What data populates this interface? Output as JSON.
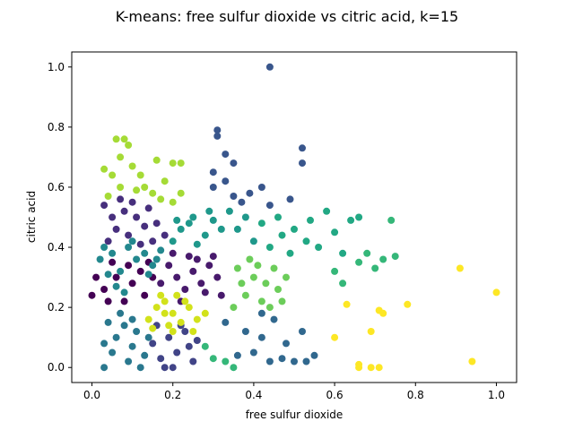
{
  "chart_data": {
    "type": "scatter",
    "title": "K-means: free sulfur dioxide vs citric acid, k=15",
    "xlabel": "free sulfur dioxide",
    "ylabel": "citric acid",
    "xlim": [
      -0.05,
      1.05
    ],
    "ylim": [
      -0.05,
      1.05
    ],
    "xticks": [
      0.0,
      0.2,
      0.4,
      0.6,
      0.8,
      1.0
    ],
    "xtick_labels": [
      "0.0",
      "0.2",
      "0.4",
      "0.6",
      "0.8",
      "1.0"
    ],
    "yticks": [
      0.0,
      0.2,
      0.4,
      0.6,
      0.8,
      1.0
    ],
    "ytick_labels": [
      "0.0",
      "0.2",
      "0.4",
      "0.6",
      "0.8",
      "1.0"
    ],
    "grid": false,
    "legend": false,
    "colormap": "viridis",
    "clusters": [
      {
        "color": "#440154",
        "points": [
          [
            0.0,
            0.24
          ],
          [
            0.01,
            0.3
          ],
          [
            0.03,
            0.26
          ],
          [
            0.06,
            0.3
          ],
          [
            0.08,
            0.22
          ],
          [
            0.1,
            0.28
          ],
          [
            0.12,
            0.32
          ],
          [
            0.13,
            0.24
          ],
          [
            0.15,
            0.3
          ],
          [
            0.04,
            0.22
          ],
          [
            0.09,
            0.34
          ],
          [
            0.14,
            0.35
          ],
          [
            0.05,
            0.35
          ]
        ]
      },
      {
        "color": "#481a6c",
        "points": [
          [
            0.17,
            0.28
          ],
          [
            0.19,
            0.34
          ],
          [
            0.21,
            0.3
          ],
          [
            0.23,
            0.26
          ],
          [
            0.25,
            0.32
          ],
          [
            0.27,
            0.28
          ],
          [
            0.29,
            0.34
          ],
          [
            0.31,
            0.3
          ],
          [
            0.32,
            0.24
          ],
          [
            0.2,
            0.38
          ],
          [
            0.24,
            0.37
          ],
          [
            0.28,
            0.25
          ],
          [
            0.22,
            0.22
          ],
          [
            0.3,
            0.37
          ],
          [
            0.26,
            0.36
          ]
        ]
      },
      {
        "color": "#472f7d",
        "points": [
          [
            0.03,
            0.54
          ],
          [
            0.05,
            0.5
          ],
          [
            0.06,
            0.46
          ],
          [
            0.08,
            0.52
          ],
          [
            0.09,
            0.44
          ],
          [
            0.11,
            0.5
          ],
          [
            0.13,
            0.47
          ],
          [
            0.15,
            0.42
          ],
          [
            0.16,
            0.48
          ],
          [
            0.18,
            0.44
          ],
          [
            0.04,
            0.42
          ],
          [
            0.07,
            0.56
          ],
          [
            0.1,
            0.55
          ],
          [
            0.12,
            0.41
          ],
          [
            0.14,
            0.53
          ]
        ]
      },
      {
        "color": "#414487",
        "points": [
          [
            0.15,
            0.08
          ],
          [
            0.17,
            0.03
          ],
          [
            0.19,
            0.1
          ],
          [
            0.21,
            0.05
          ],
          [
            0.23,
            0.12
          ],
          [
            0.25,
            0.02
          ],
          [
            0.16,
            0.14
          ],
          [
            0.2,
            0.0
          ],
          [
            0.24,
            0.07
          ],
          [
            0.18,
            0.0
          ],
          [
            0.22,
            0.14
          ],
          [
            0.26,
            0.09
          ]
        ]
      },
      {
        "color": "#39568c",
        "points": [
          [
            0.44,
            1.0
          ],
          [
            0.31,
            0.79
          ],
          [
            0.31,
            0.77
          ],
          [
            0.33,
            0.71
          ],
          [
            0.35,
            0.68
          ],
          [
            0.3,
            0.65
          ],
          [
            0.52,
            0.73
          ],
          [
            0.52,
            0.68
          ],
          [
            0.3,
            0.6
          ],
          [
            0.33,
            0.62
          ],
          [
            0.35,
            0.57
          ],
          [
            0.39,
            0.58
          ],
          [
            0.42,
            0.6
          ],
          [
            0.49,
            0.56
          ],
          [
            0.37,
            0.55
          ],
          [
            0.44,
            0.54
          ]
        ]
      },
      {
        "color": "#31688e",
        "points": [
          [
            0.33,
            0.15
          ],
          [
            0.38,
            0.12
          ],
          [
            0.42,
            0.1
          ],
          [
            0.45,
            0.16
          ],
          [
            0.48,
            0.08
          ],
          [
            0.52,
            0.12
          ],
          [
            0.55,
            0.04
          ],
          [
            0.5,
            0.02
          ],
          [
            0.44,
            0.02
          ],
          [
            0.4,
            0.05
          ],
          [
            0.36,
            0.04
          ],
          [
            0.53,
            0.02
          ],
          [
            0.47,
            0.03
          ],
          [
            0.42,
            0.18
          ]
        ]
      },
      {
        "color": "#2a788e",
        "points": [
          [
            0.03,
            0.0
          ],
          [
            0.05,
            0.05
          ],
          [
            0.06,
            0.1
          ],
          [
            0.08,
            0.14
          ],
          [
            0.09,
            0.02
          ],
          [
            0.1,
            0.07
          ],
          [
            0.11,
            0.12
          ],
          [
            0.12,
            0.0
          ],
          [
            0.13,
            0.04
          ],
          [
            0.04,
            0.15
          ],
          [
            0.07,
            0.18
          ],
          [
            0.14,
            0.1
          ],
          [
            0.03,
            0.08
          ],
          [
            0.1,
            0.16
          ]
        ]
      },
      {
        "color": "#23888e",
        "points": [
          [
            0.02,
            0.36
          ],
          [
            0.03,
            0.4
          ],
          [
            0.05,
            0.38
          ],
          [
            0.07,
            0.32
          ],
          [
            0.09,
            0.4
          ],
          [
            0.11,
            0.36
          ],
          [
            0.13,
            0.38
          ],
          [
            0.15,
            0.34
          ],
          [
            0.17,
            0.39
          ],
          [
            0.04,
            0.31
          ],
          [
            0.06,
            0.27
          ],
          [
            0.08,
            0.25
          ],
          [
            0.1,
            0.42
          ],
          [
            0.14,
            0.31
          ],
          [
            0.16,
            0.36
          ]
        ]
      },
      {
        "color": "#1f988b",
        "points": [
          [
            0.2,
            0.42
          ],
          [
            0.22,
            0.46
          ],
          [
            0.24,
            0.48
          ],
          [
            0.26,
            0.41
          ],
          [
            0.28,
            0.44
          ],
          [
            0.3,
            0.49
          ],
          [
            0.32,
            0.46
          ],
          [
            0.34,
            0.52
          ],
          [
            0.36,
            0.46
          ],
          [
            0.38,
            0.5
          ],
          [
            0.4,
            0.42
          ],
          [
            0.25,
            0.5
          ],
          [
            0.29,
            0.52
          ],
          [
            0.21,
            0.49
          ]
        ]
      },
      {
        "color": "#22a884",
        "points": [
          [
            0.42,
            0.48
          ],
          [
            0.47,
            0.44
          ],
          [
            0.5,
            0.46
          ],
          [
            0.53,
            0.42
          ],
          [
            0.56,
            0.4
          ],
          [
            0.6,
            0.45
          ],
          [
            0.62,
            0.38
          ],
          [
            0.64,
            0.49
          ],
          [
            0.58,
            0.52
          ],
          [
            0.54,
            0.49
          ],
          [
            0.46,
            0.5
          ],
          [
            0.49,
            0.38
          ],
          [
            0.66,
            0.5
          ],
          [
            0.44,
            0.4
          ]
        ]
      },
      {
        "color": "#35b779",
        "points": [
          [
            0.6,
            0.32
          ],
          [
            0.66,
            0.35
          ],
          [
            0.68,
            0.38
          ],
          [
            0.72,
            0.36
          ],
          [
            0.74,
            0.49
          ],
          [
            0.75,
            0.37
          ],
          [
            0.7,
            0.33
          ],
          [
            0.62,
            0.28
          ],
          [
            0.35,
            0.0
          ],
          [
            0.3,
            0.03
          ],
          [
            0.28,
            0.07
          ],
          [
            0.33,
            0.02
          ]
        ]
      },
      {
        "color": "#6ccd5a",
        "points": [
          [
            0.36,
            0.33
          ],
          [
            0.4,
            0.3
          ],
          [
            0.43,
            0.28
          ],
          [
            0.46,
            0.26
          ],
          [
            0.48,
            0.3
          ],
          [
            0.38,
            0.24
          ],
          [
            0.35,
            0.2
          ],
          [
            0.42,
            0.22
          ],
          [
            0.45,
            0.33
          ],
          [
            0.39,
            0.36
          ],
          [
            0.47,
            0.22
          ],
          [
            0.37,
            0.28
          ],
          [
            0.41,
            0.34
          ],
          [
            0.44,
            0.2
          ]
        ]
      },
      {
        "color": "#a5db36",
        "points": [
          [
            0.06,
            0.76
          ],
          [
            0.08,
            0.76
          ],
          [
            0.09,
            0.74
          ],
          [
            0.07,
            0.7
          ],
          [
            0.03,
            0.66
          ],
          [
            0.05,
            0.64
          ],
          [
            0.07,
            0.6
          ],
          [
            0.12,
            0.64
          ],
          [
            0.13,
            0.6
          ],
          [
            0.16,
            0.69
          ],
          [
            0.2,
            0.68
          ],
          [
            0.22,
            0.68
          ],
          [
            0.18,
            0.62
          ],
          [
            0.15,
            0.58
          ],
          [
            0.22,
            0.58
          ],
          [
            0.2,
            0.55
          ],
          [
            0.17,
            0.56
          ],
          [
            0.04,
            0.57
          ],
          [
            0.11,
            0.59
          ],
          [
            0.1,
            0.67
          ]
        ]
      },
      {
        "color": "#d2e21b",
        "points": [
          [
            0.14,
            0.16
          ],
          [
            0.16,
            0.2
          ],
          [
            0.18,
            0.22
          ],
          [
            0.2,
            0.18
          ],
          [
            0.22,
            0.15
          ],
          [
            0.24,
            0.2
          ],
          [
            0.26,
            0.16
          ],
          [
            0.28,
            0.18
          ],
          [
            0.17,
            0.24
          ],
          [
            0.19,
            0.14
          ],
          [
            0.21,
            0.24
          ],
          [
            0.15,
            0.13
          ],
          [
            0.23,
            0.22
          ],
          [
            0.25,
            0.12
          ],
          [
            0.18,
            0.18
          ],
          [
            0.2,
            0.12
          ]
        ]
      },
      {
        "color": "#fde725",
        "points": [
          [
            0.91,
            0.33
          ],
          [
            1.0,
            0.25
          ],
          [
            0.63,
            0.21
          ],
          [
            0.78,
            0.21
          ],
          [
            0.71,
            0.19
          ],
          [
            0.72,
            0.18
          ],
          [
            0.69,
            0.12
          ],
          [
            0.6,
            0.1
          ],
          [
            0.66,
            0.01
          ],
          [
            0.69,
            0.0
          ],
          [
            0.71,
            0.0
          ],
          [
            0.94,
            0.02
          ],
          [
            0.66,
            0.0
          ]
        ]
      }
    ]
  }
}
